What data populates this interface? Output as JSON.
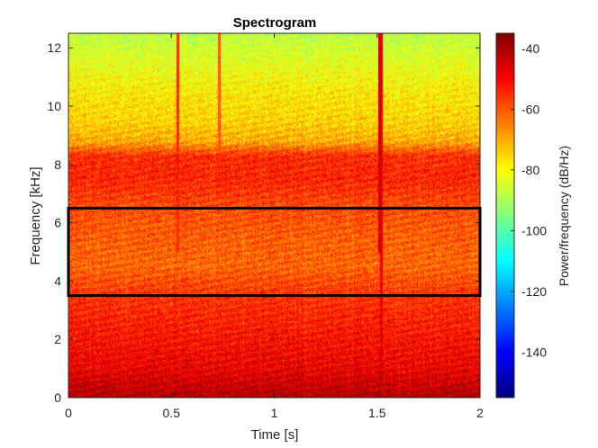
{
  "chart_data": {
    "type": "heatmap",
    "title": "Spectrogram",
    "xlabel": "Time [s]",
    "ylabel": "Frequency [kHz]",
    "xlim": [
      0,
      2
    ],
    "ylim": [
      0,
      12.5
    ],
    "xticks": [
      0,
      0.5,
      1,
      1.5,
      2
    ],
    "xtick_labels": [
      "0",
      "0.5",
      "1",
      "1.5",
      "2"
    ],
    "yticks": [
      0,
      2,
      4,
      6,
      8,
      10,
      12
    ],
    "ytick_labels": [
      "0",
      "2",
      "4",
      "6",
      "8",
      "10",
      "12"
    ],
    "colormap": "jet",
    "colorbar": {
      "label": "Power/frequency (dB/Hz)",
      "range": [
        -155,
        -35
      ],
      "ticks": [
        -140,
        -120,
        -100,
        -80,
        -60,
        -40
      ],
      "tick_labels": [
        "-140",
        "-120",
        "-100",
        "-80",
        "-60",
        "-40"
      ]
    },
    "power_profile_db": [
      {
        "freq_khz": 0.0,
        "power": -40
      },
      {
        "freq_khz": 0.2,
        "power": -42
      },
      {
        "freq_khz": 1.0,
        "power": -48
      },
      {
        "freq_khz": 2.5,
        "power": -53
      },
      {
        "freq_khz": 3.5,
        "power": -56
      },
      {
        "freq_khz": 4.5,
        "power": -62
      },
      {
        "freq_khz": 5.5,
        "power": -61
      },
      {
        "freq_khz": 6.5,
        "power": -59
      },
      {
        "freq_khz": 7.5,
        "power": -54
      },
      {
        "freq_khz": 8.3,
        "power": -55
      },
      {
        "freq_khz": 8.8,
        "power": -70
      },
      {
        "freq_khz": 9.5,
        "power": -75
      },
      {
        "freq_khz": 10.5,
        "power": -78
      },
      {
        "freq_khz": 11.5,
        "power": -83
      },
      {
        "freq_khz": 12.5,
        "power": -88
      }
    ],
    "transient_lines": [
      {
        "time_s": 0.53,
        "power": -55,
        "freq_min_khz": 5.0,
        "freq_max_khz": 12.5
      },
      {
        "time_s": 0.73,
        "power": -60,
        "freq_min_khz": 7.5,
        "freq_max_khz": 12.5
      },
      {
        "time_s": 1.51,
        "power": -45,
        "freq_min_khz": 5.0,
        "freq_max_khz": 12.5
      },
      {
        "time_s": 1.52,
        "power": -48,
        "freq_min_khz": 0.0,
        "freq_max_khz": 12.5
      }
    ],
    "annotations": [
      {
        "type": "rectangle",
        "color": "#000000",
        "time_s": [
          0,
          2
        ],
        "freq_khz": [
          3.5,
          6.5
        ]
      }
    ]
  }
}
